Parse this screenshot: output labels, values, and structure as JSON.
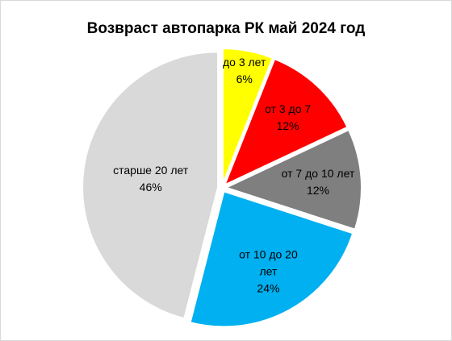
{
  "chart_data": {
    "type": "pie",
    "title": "Возвраст автопарка РК май 2024 год",
    "categories": [
      "до 3 лет",
      "от 3 до 7",
      "от 7 до 10 лет",
      "от 10 до 20 лет",
      "старше 20 лет"
    ],
    "values": [
      6,
      12,
      12,
      24,
      46
    ],
    "value_labels": [
      "6%",
      "12%",
      "12%",
      "24%",
      "46%"
    ],
    "colors": [
      "#ffff00",
      "#ff0000",
      "#7f7f7f",
      "#00b0f0",
      "#d9d9d9"
    ]
  }
}
